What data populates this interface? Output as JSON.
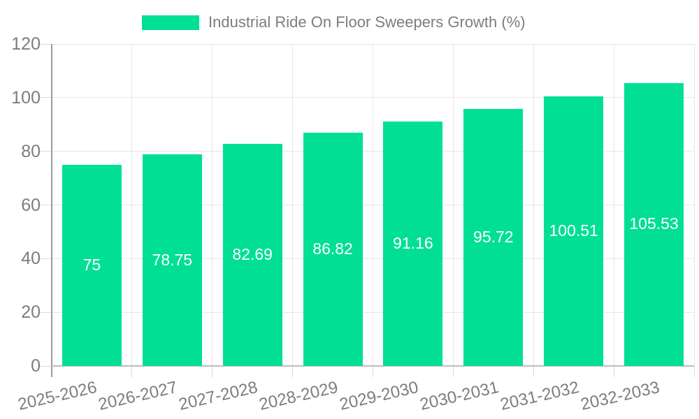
{
  "legend": {
    "label": "Industrial Ride On Floor Sweepers Growth (%)"
  },
  "colors": {
    "bar": "#01df94",
    "grid": "#e7e7e7",
    "tick": "#d9d9d9",
    "axis_line": "#9b9b9b",
    "baseline": "#bdbdbd",
    "text": "#7d7d7d",
    "value_label": "#ffffff",
    "background": "#ffffff"
  },
  "chart_data": {
    "type": "bar",
    "title": "Industrial Ride On Floor Sweepers Growth (%)",
    "categories": [
      "2025-2026",
      "2026-2027",
      "2027-2028",
      "2028-2029",
      "2029-2030",
      "2030-2031",
      "2031-2032",
      "2032-2033"
    ],
    "values": [
      75,
      78.75,
      82.69,
      86.82,
      91.16,
      95.72,
      100.51,
      105.53
    ],
    "value_labels": [
      "75",
      "78.75",
      "82.69",
      "86.82",
      "91.16",
      "95.72",
      "100.51",
      "105.53"
    ],
    "ytick_labels": [
      "0",
      "20",
      "40",
      "60",
      "80",
      "100",
      "120"
    ],
    "yticks": [
      0,
      20,
      40,
      60,
      80,
      100,
      120
    ],
    "ylim": [
      0,
      120
    ],
    "xlabel": "",
    "ylabel": "",
    "grid": true,
    "legend_position": "top",
    "bar_labels_inside": true
  }
}
